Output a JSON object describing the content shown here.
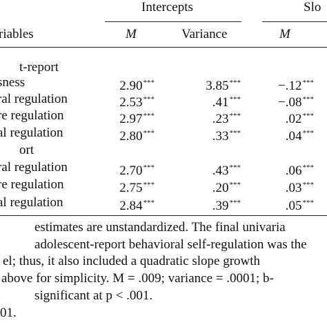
{
  "header": {
    "group_1": "Intercepts",
    "group_2": "Slo",
    "variables": "riables",
    "col_1": "M",
    "col_2": "Variance",
    "col_3": "M"
  },
  "table": {
    "rows": [
      {
        "label": "t-report"
      },
      {
        "label": "sness",
        "cells": [
          {
            "value": "2.90",
            "sig": "***"
          },
          {
            "value": "3.85",
            "sig": "***"
          },
          {
            "value": "−.12",
            "sig": "***"
          }
        ]
      },
      {
        "label": "ral regulation",
        "cells": [
          {
            "value": "2.53",
            "sig": "***"
          },
          {
            "value": ".41",
            "sig": "***"
          },
          {
            "value": "−.08",
            "sig": "***"
          }
        ]
      },
      {
        "label": "re regulation",
        "cells": [
          {
            "value": "2.97",
            "sig": "***"
          },
          {
            "value": ".23",
            "sig": "***"
          },
          {
            "value": ".02",
            "sig": "***"
          }
        ]
      },
      {
        "label": "al regulation",
        "cells": [
          {
            "value": "2.80",
            "sig": "***"
          },
          {
            "value": ".33",
            "sig": "***"
          },
          {
            "value": ".04",
            "sig": "***"
          }
        ]
      },
      {
        "label": "ort"
      },
      {
        "label": "ral regulation",
        "cells": [
          {
            "value": "2.70",
            "sig": "***"
          },
          {
            "value": ".43",
            "sig": "***"
          },
          {
            "value": ".06",
            "sig": "***"
          }
        ]
      },
      {
        "label": "re regulation",
        "cells": [
          {
            "value": "2.75",
            "sig": "***"
          },
          {
            "value": ".20",
            "sig": "***"
          },
          {
            "value": ".03",
            "sig": "***"
          }
        ]
      },
      {
        "label": "al regulation",
        "cells": [
          {
            "value": "2.84",
            "sig": "***"
          },
          {
            "value": ".39",
            "sig": "***"
          },
          {
            "value": ".05",
            "sig": "***"
          }
        ]
      }
    ]
  },
  "notes": [
    "estimates are unstandardized. The final univaria",
    "adolescent-report behavioral self-regulation was the",
    "el; thus, it also included a quadratic slope growth",
    "above for simplicity. M = .009; variance = .0001; b-",
    "significant at p < .001.",
    "01."
  ]
}
